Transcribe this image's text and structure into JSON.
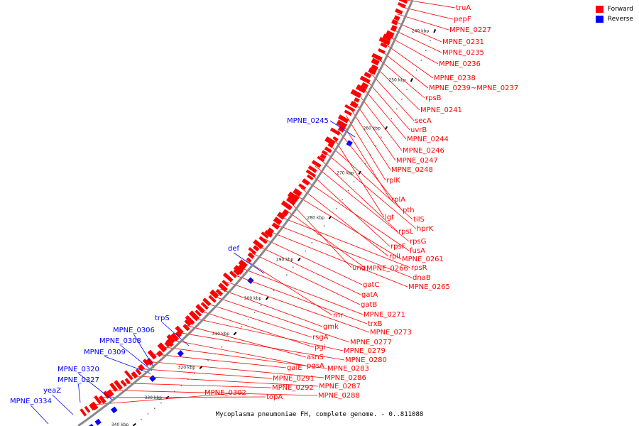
{
  "caption": "Mycoplasma pneumoniae FH, complete genome. - 0..811088",
  "legend": {
    "forward_label": "Forward",
    "reverse_label": "Reverse",
    "forward_color": "#ff0000",
    "reverse_color": "#0000ff"
  },
  "ticks": [
    "240 kbp",
    "250 kbp",
    "260 kbp",
    "270 kbp",
    "280 kbp",
    "290 kbp",
    "300 kbp",
    "310 kbp",
    "320 kbp",
    "330 kbp",
    "340 kbp"
  ],
  "forward_labels": [
    "truA",
    "pepF",
    "MPNE_0227",
    "MPNE_0231",
    "MPNE_0235",
    "MPNE_0236",
    "MPNE_0238",
    "MPNE_0239~MPNE_0237",
    "rpsB",
    "MPNE_0241",
    "secA",
    "uvrB",
    "MPNE_0244",
    "MPNE_0246",
    "MPNE_0247",
    "MPNE_0248",
    "rplK",
    "rplA",
    "pth",
    "lgt",
    "tilS",
    "hprK",
    "rpsL",
    "rpsG",
    "rpsF",
    "fusA",
    "rplI",
    "MPNE_0261",
    "ung",
    "MPNE_0266",
    "rpsR",
    "dnaB",
    "MPNE_0265",
    "gatC",
    "gatA",
    "gatB",
    "rnr",
    "MPNE_0271",
    "trxB",
    "MPNE_0273",
    "gmk",
    "MPNE_0277",
    "rsgA",
    "pgi",
    "MPNE_0279",
    "asnS",
    "MPNE_0280",
    "pgsA",
    "MPNE_0283",
    "galE",
    "MPNE_0286",
    "MPNE_0291",
    "MPNE_0287",
    "MPNE_0292",
    "MPNE_0288",
    "topA",
    "MPNE_0302"
  ],
  "reverse_labels": [
    "MPNE_0245",
    "def",
    "trpS",
    "MPNE_0306",
    "MPNE_0308",
    "MPNE_0309",
    "MPNE_0320",
    "MPNE_0327",
    "yeaZ",
    "MPNE_0334"
  ]
}
